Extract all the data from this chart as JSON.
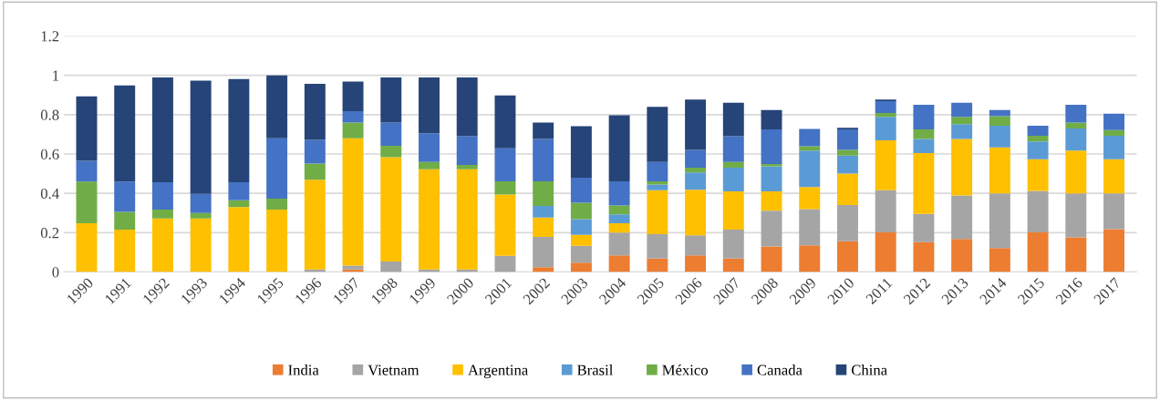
{
  "chart_data": {
    "type": "bar",
    "stacked": true,
    "categories": [
      "1990",
      "1991",
      "1992",
      "1993",
      "1994",
      "1995",
      "1996",
      "1997",
      "1998",
      "1999",
      "2000",
      "2001",
      "2002",
      "2003",
      "2004",
      "2005",
      "2006",
      "2007",
      "2008",
      "2009",
      "2010",
      "2011",
      "2012",
      "2013",
      "2014",
      "2015",
      "2016",
      "2017"
    ],
    "series": [
      {
        "name": "India",
        "color": "#ed7d31",
        "values": [
          0,
          0,
          0,
          0,
          0,
          0,
          0,
          0.013,
          0,
          0,
          0,
          0,
          0.024,
          0.048,
          0.085,
          0.069,
          0.085,
          0.069,
          0.13,
          0.136,
          0.157,
          0.202,
          0.152,
          0.168,
          0.122,
          0.202,
          0.176,
          0.218
        ]
      },
      {
        "name": "Vietnam",
        "color": "#a5a5a5",
        "values": [
          0,
          0,
          0,
          0,
          0,
          0,
          0.013,
          0.019,
          0.053,
          0.013,
          0.013,
          0.082,
          0.154,
          0.085,
          0.115,
          0.123,
          0.101,
          0.147,
          0.182,
          0.184,
          0.184,
          0.214,
          0.144,
          0.221,
          0.278,
          0.211,
          0.224,
          0.182
        ]
      },
      {
        "name": "Argentina",
        "color": "#ffc000",
        "values": [
          0.248,
          0.216,
          0.272,
          0.272,
          0.33,
          0.317,
          0.456,
          0.648,
          0.531,
          0.509,
          0.509,
          0.312,
          0.099,
          0.056,
          0.048,
          0.224,
          0.232,
          0.194,
          0.098,
          0.112,
          0.16,
          0.253,
          0.309,
          0.288,
          0.234,
          0.16,
          0.218,
          0.173
        ]
      },
      {
        "name": "Brasil",
        "color": "#5b9bd5",
        "values": [
          0,
          0,
          0,
          0,
          0,
          0,
          0,
          0,
          0,
          0,
          0,
          0,
          0.059,
          0.08,
          0.045,
          0.029,
          0.088,
          0.12,
          0.128,
          0.186,
          0.091,
          0.12,
          0.072,
          0.075,
          0.11,
          0.091,
          0.112,
          0.12
        ]
      },
      {
        "name": "México",
        "color": "#70ad47",
        "values": [
          0.212,
          0.09,
          0.045,
          0.028,
          0.035,
          0.056,
          0.083,
          0.08,
          0.058,
          0.038,
          0.022,
          0.067,
          0.125,
          0.083,
          0.045,
          0.016,
          0.024,
          0.03,
          0.011,
          0.022,
          0.029,
          0.019,
          0.048,
          0.037,
          0.048,
          0.029,
          0.03,
          0.029
        ]
      },
      {
        "name": "Canada",
        "color": "#4472c4",
        "values": [
          0.105,
          0.154,
          0.139,
          0.097,
          0.091,
          0.307,
          0.12,
          0.058,
          0.118,
          0.146,
          0.146,
          0.168,
          0.216,
          0.128,
          0.123,
          0.099,
          0.091,
          0.13,
          0.176,
          0.088,
          0.104,
          0.061,
          0.125,
          0.072,
          0.032,
          0.051,
          0.09,
          0.083
        ]
      },
      {
        "name": "China",
        "color": "#264478",
        "values": [
          0.328,
          0.489,
          0.533,
          0.576,
          0.525,
          0.32,
          0.285,
          0.15,
          0.229,
          0.283,
          0.299,
          0.269,
          0.083,
          0.261,
          0.336,
          0.28,
          0.256,
          0.171,
          0.099,
          null,
          0.008,
          0.008,
          0,
          0,
          0,
          0,
          0,
          0
        ]
      }
    ],
    "ylim": [
      0,
      1.2
    ],
    "yticks": [
      0,
      0.2,
      0.4,
      0.6,
      0.8,
      1,
      1.2
    ],
    "grid": "y",
    "legend": "bottom"
  }
}
